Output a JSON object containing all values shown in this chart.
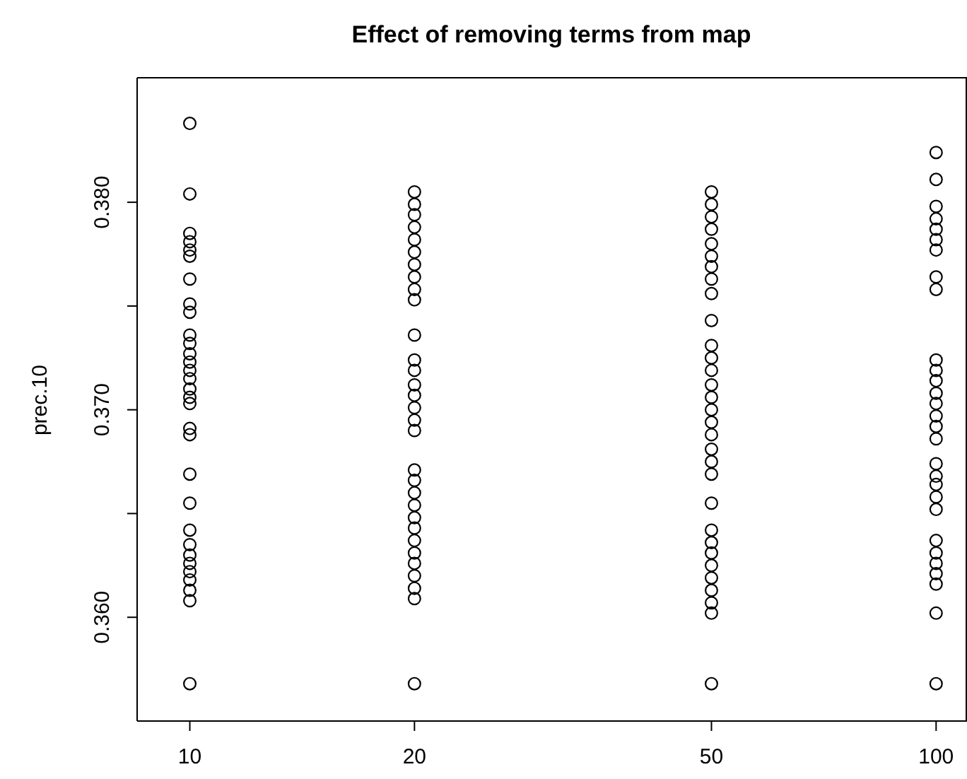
{
  "chart_data": {
    "type": "scatter",
    "title": "Effect of removing terms from map",
    "ylabel": "prec.10",
    "log": "x",
    "xlim": [
      8.5,
      110
    ],
    "xticks": [
      10,
      20,
      50,
      100
    ],
    "ylim": [
      0.355,
      0.386
    ],
    "yticks": [
      {
        "value": 0.36,
        "label": "0.360"
      },
      {
        "value": 0.365,
        "label": null
      },
      {
        "value": 0.37,
        "label": "0.370"
      },
      {
        "value": 0.375,
        "label": null
      },
      {
        "value": 0.38,
        "label": "0.380"
      }
    ],
    "grid": false,
    "legend": false,
    "marker": "circle",
    "series": [
      {
        "color": "#000000",
        "x": [
          10,
          10,
          10,
          10,
          10,
          10,
          10,
          10,
          10,
          10,
          10,
          10,
          10,
          10,
          10,
          10,
          10,
          10,
          10,
          10,
          10,
          10,
          10,
          10,
          10,
          10,
          10,
          10,
          10,
          10,
          10
        ],
        "values": [
          0.3838,
          0.3804,
          0.3785,
          0.3781,
          0.3777,
          0.3774,
          0.3763,
          0.3751,
          0.3747,
          0.3736,
          0.3732,
          0.3727,
          0.3723,
          0.3719,
          0.3715,
          0.371,
          0.3706,
          0.3703,
          0.3691,
          0.3688,
          0.3669,
          0.3655,
          0.3642,
          0.3635,
          0.363,
          0.3626,
          0.3622,
          0.3618,
          0.3613,
          0.3608,
          0.3568
        ]
      },
      {
        "color": "#000000",
        "x": [
          20,
          20,
          20,
          20,
          20,
          20,
          20,
          20,
          20,
          20,
          20,
          20,
          20,
          20,
          20,
          20,
          20,
          20,
          20,
          20,
          20,
          20,
          20,
          20,
          20,
          20,
          20,
          20,
          20,
          20,
          20
        ],
        "values": [
          0.3805,
          0.3799,
          0.3794,
          0.3788,
          0.3782,
          0.3776,
          0.377,
          0.3764,
          0.3758,
          0.3753,
          0.3736,
          0.3724,
          0.3719,
          0.3712,
          0.3707,
          0.3701,
          0.3695,
          0.369,
          0.3671,
          0.3666,
          0.366,
          0.3654,
          0.3648,
          0.3643,
          0.3637,
          0.3631,
          0.3626,
          0.362,
          0.3614,
          0.3609,
          0.3568
        ]
      },
      {
        "color": "#000000",
        "x": [
          50,
          50,
          50,
          50,
          50,
          50,
          50,
          50,
          50,
          50,
          50,
          50,
          50,
          50,
          50,
          50,
          50,
          50,
          50,
          50,
          50,
          50,
          50,
          50,
          50,
          50,
          50,
          50,
          50,
          50,
          50
        ],
        "values": [
          0.3805,
          0.3799,
          0.3793,
          0.3787,
          0.378,
          0.3774,
          0.3769,
          0.3763,
          0.3756,
          0.3743,
          0.3731,
          0.3725,
          0.3719,
          0.3712,
          0.3706,
          0.37,
          0.3694,
          0.3688,
          0.3681,
          0.3675,
          0.3669,
          0.3655,
          0.3642,
          0.3636,
          0.3631,
          0.3625,
          0.3619,
          0.3613,
          0.3607,
          0.3602,
          0.3568
        ]
      },
      {
        "color": "#000000",
        "x": [
          100,
          100,
          100,
          100,
          100,
          100,
          100,
          100,
          100,
          100,
          100,
          100,
          100,
          100,
          100,
          100,
          100,
          100,
          100,
          100,
          100,
          100,
          100,
          100,
          100,
          100,
          100,
          100,
          100
        ],
        "values": [
          0.3824,
          0.3811,
          0.3798,
          0.3792,
          0.3787,
          0.3782,
          0.3777,
          0.3764,
          0.3758,
          0.3724,
          0.3719,
          0.3714,
          0.3708,
          0.3703,
          0.3697,
          0.3692,
          0.3686,
          0.3674,
          0.3668,
          0.3664,
          0.3658,
          0.3652,
          0.3637,
          0.3631,
          0.3626,
          0.3621,
          0.3616,
          0.3602,
          0.3568
        ]
      }
    ]
  }
}
